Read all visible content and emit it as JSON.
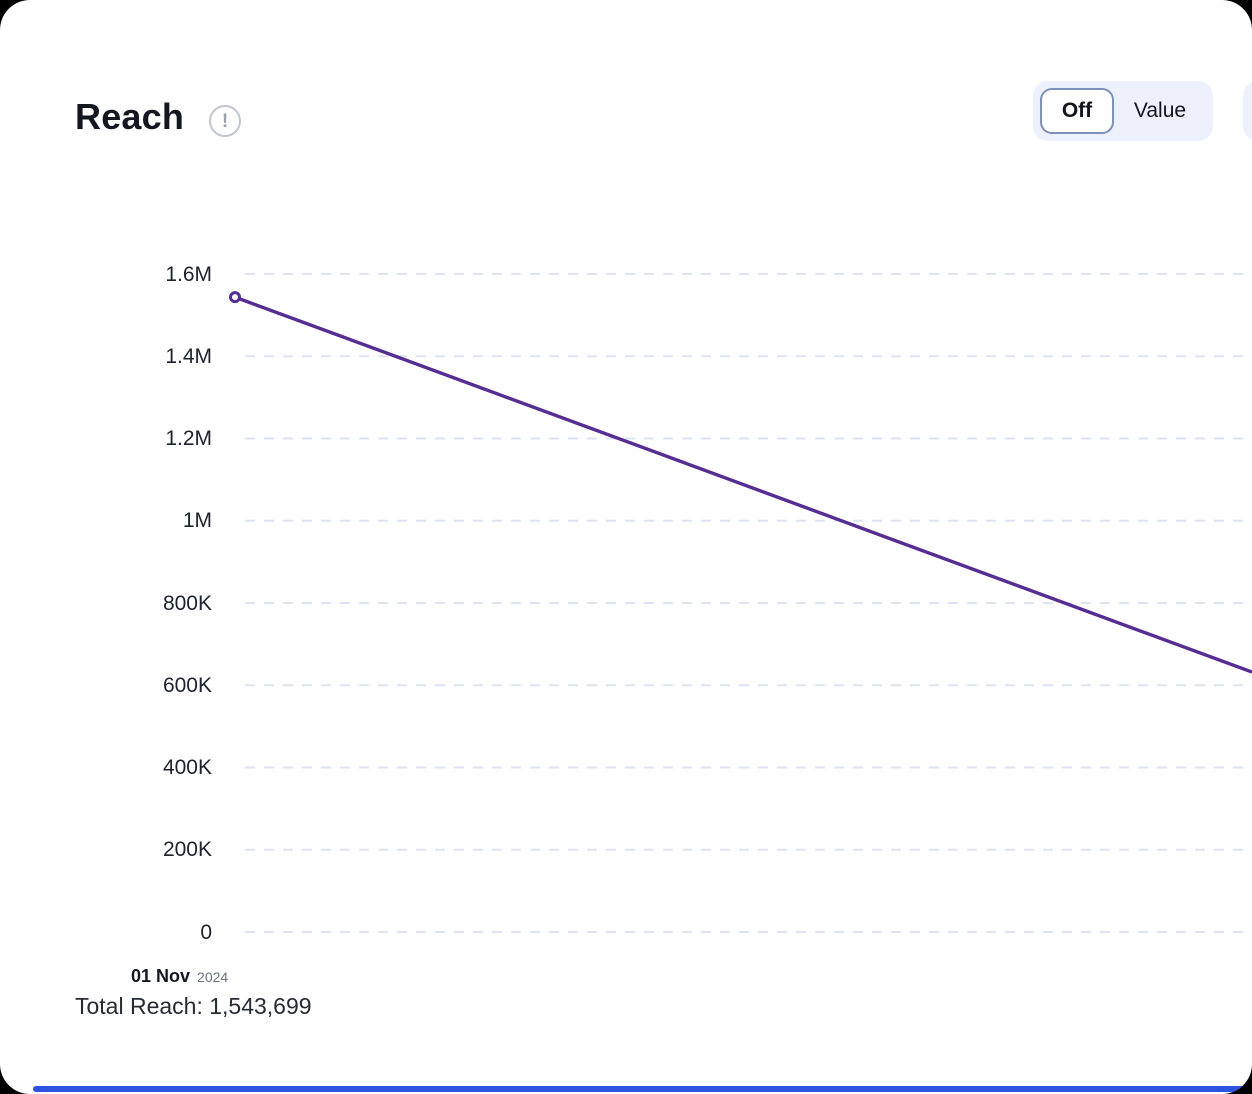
{
  "header": {
    "title": "Reach"
  },
  "controls": {
    "display_toggle": {
      "options": [
        "Off",
        "Value"
      ],
      "selected": "Off"
    }
  },
  "chart_data": {
    "type": "line",
    "title": "Reach",
    "x": [
      "01 Nov 2024"
    ],
    "series": [
      {
        "name": "Reach",
        "visible_points": [
          {
            "x": "01 Nov 2024",
            "value": 1543699
          }
        ],
        "value_at_right_clip_estimate": 632000
      }
    ],
    "ylim": [
      0,
      1600000
    ],
    "y_ticks": [
      {
        "label": "1.6M",
        "value": 1600000
      },
      {
        "label": "1.4M",
        "value": 1400000
      },
      {
        "label": "1.2M",
        "value": 1200000
      },
      {
        "label": "1M",
        "value": 1000000
      },
      {
        "label": "800K",
        "value": 800000
      },
      {
        "label": "600K",
        "value": 600000
      },
      {
        "label": "400K",
        "value": 400000
      },
      {
        "label": "200K",
        "value": 200000
      },
      {
        "label": "0",
        "value": 0
      }
    ],
    "grid": "dashed-horizontal",
    "legend": "none",
    "clipped_right": true,
    "colors": {
      "line": "#562d93",
      "marker_fill": "#ffffff",
      "gridline": "#dde3f0"
    }
  },
  "x_axis": {
    "tick_day": "01 Nov",
    "tick_year": "2024"
  },
  "footer": {
    "total_reach": "Total Reach: 1,543,699"
  },
  "scrollbar": {
    "color": "#2e53e0"
  },
  "theme": {
    "toggle_bg": "#edf1fb",
    "toggle_selected_border": "#7e91b8"
  }
}
